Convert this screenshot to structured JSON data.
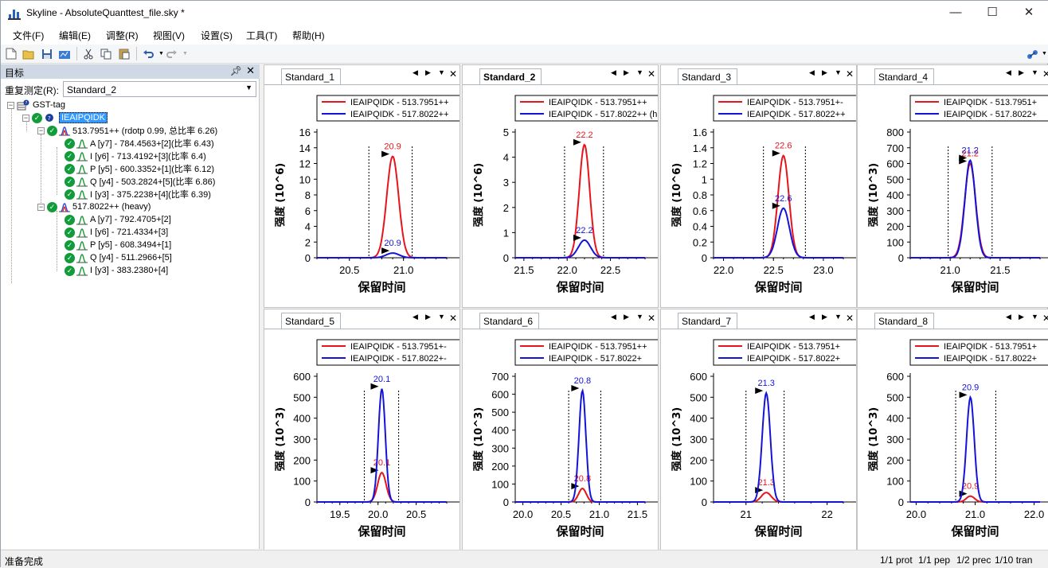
{
  "window": {
    "title": "Skyline - AbsoluteQuanttest_file.sky *",
    "controls": [
      "—",
      "☐",
      "✕"
    ]
  },
  "menu": [
    "文件(F)",
    "编辑(E)",
    "调整(R)",
    "视图(V)",
    "设置(S)",
    "工具(T)",
    "帮助(H)"
  ],
  "targets": {
    "header": "目标",
    "replicate_label": "重复测定(R):",
    "replicate_value": "Standard_2",
    "tree": {
      "protein": "GST-tag",
      "peptide": "IEAIPQIDK",
      "precursors": [
        {
          "label": "513.7951++ (rdotp 0.99, 总比率 6.26)",
          "transitions": [
            "A [y7] - 784.4563+[2](比率 6.43)",
            "I [y6] - 713.4192+[3](比率 6.4)",
            "P [y5] - 600.3352+[1](比率 6.12)",
            "Q [y4] - 503.2824+[5](比率 6.86)",
            "I [y3] - 375.2238+[4](比率 6.39)"
          ]
        },
        {
          "label": "517.8022++ (heavy)",
          "transitions": [
            "A [y7] - 792.4705+[2]",
            "I [y6] - 721.4334+[3]",
            "P [y5] - 608.3494+[1]",
            "Q [y4] - 511.2966+[5]",
            "I [y3] - 383.2380+[4]"
          ]
        }
      ]
    }
  },
  "status": {
    "left": "准备完成",
    "prot": "1/1 prot",
    "pep": "1/1 pep",
    "prec": "1/2 prec",
    "tran": "1/10 tran"
  },
  "colors": {
    "light": "#e8141c",
    "heavy": "#1313d9",
    "peak_check": "#119b3a",
    "selection": "#3399ff"
  },
  "chart_data": [
    {
      "type": "line",
      "tab": "Standard_1",
      "title": "",
      "xlabel": "保留时间",
      "ylabel": "强度 (10^6)",
      "xlim": [
        20.2,
        21.4
      ],
      "ylim": [
        0,
        16
      ],
      "xticks": [
        20.5,
        21.0
      ],
      "xtick_labels": [
        "20.5",
        "21.0"
      ],
      "yticks": [
        0,
        2,
        4,
        6,
        8,
        10,
        12,
        14,
        16
      ],
      "ytick_labels": [
        "0",
        "2",
        "4",
        "6",
        "8",
        "10",
        "12",
        "14",
        "16"
      ],
      "boundaries": [
        20.68,
        21.08
      ],
      "legend": [
        "IEAIPQIDK - 513.7951++",
        "IEAIPQIDK - 517.8022++"
      ],
      "series": [
        {
          "name": "IEAIPQIDK - 513.7951++",
          "color": "#e8141c",
          "rt": 20.9,
          "apex": 12.9,
          "width": 0.055,
          "label": "20.9"
        },
        {
          "name": "IEAIPQIDK - 517.8022++",
          "color": "#1313d9",
          "rt": 20.9,
          "apex": 0.6,
          "width": 0.06,
          "label": "20.9"
        }
      ]
    },
    {
      "type": "line",
      "tab": "Standard_2",
      "title": "",
      "xlabel": "保留时间",
      "ylabel": "强度 (10^6)",
      "xlim": [
        21.4,
        22.9
      ],
      "ylim": [
        0,
        5
      ],
      "xticks": [
        21.5,
        22.0,
        22.5
      ],
      "xtick_labels": [
        "21.5",
        "22.0",
        "22.5"
      ],
      "yticks": [
        0,
        1,
        2,
        3,
        4,
        5
      ],
      "ytick_labels": [
        "0",
        "1",
        "2",
        "3",
        "4",
        "5"
      ],
      "boundaries": [
        21.97,
        22.42
      ],
      "legend": [
        "IEAIPQIDK - 513.7951++",
        "IEAIPQIDK - 517.8022++ (h"
      ],
      "series": [
        {
          "name": "IEAIPQIDK - 513.7951++",
          "color": "#e8141c",
          "rt": 22.2,
          "apex": 4.5,
          "width": 0.06,
          "label": "22.2"
        },
        {
          "name": "IEAIPQIDK - 517.8022++ (h",
          "color": "#1313d9",
          "rt": 22.2,
          "apex": 0.7,
          "width": 0.07,
          "label": "22.2"
        }
      ]
    },
    {
      "type": "line",
      "tab": "Standard_3",
      "title": "",
      "xlabel": "保留时间",
      "ylabel": "强度 (10^6)",
      "xlim": [
        21.9,
        23.2
      ],
      "ylim": [
        0,
        1.6
      ],
      "xticks": [
        22.0,
        22.5,
        23.0
      ],
      "xtick_labels": [
        "22.0",
        "22.5",
        "23.0"
      ],
      "yticks": [
        0,
        0.2,
        0.4,
        0.6,
        0.8,
        1.0,
        1.2,
        1.4,
        1.6
      ],
      "ytick_labels": [
        "0",
        "0.2",
        "0.4",
        "0.6",
        "0.8",
        "1",
        "1.2",
        "1.4",
        "1.6"
      ],
      "boundaries": [
        22.4,
        22.82
      ],
      "legend": [
        "IEAIPQIDK - 513.7951+-",
        "IEAIPQIDK - 517.8022++"
      ],
      "series": [
        {
          "name": "IEAIPQIDK - 513.7951+-",
          "color": "#e8141c",
          "rt": 22.6,
          "apex": 1.3,
          "width": 0.055,
          "label": "22.6"
        },
        {
          "name": "IEAIPQIDK - 517.8022++",
          "color": "#1313d9",
          "rt": 22.6,
          "apex": 0.63,
          "width": 0.06,
          "label": "22.6"
        }
      ]
    },
    {
      "type": "line",
      "tab": "Standard_4",
      "title": "",
      "xlabel": "保留时间",
      "ylabel": "强度 (10^3)",
      "xlim": [
        20.6,
        21.9
      ],
      "ylim": [
        0,
        800
      ],
      "xticks": [
        21.0,
        21.5
      ],
      "xtick_labels": [
        "21.0",
        "21.5"
      ],
      "yticks": [
        0,
        100,
        200,
        300,
        400,
        500,
        600,
        700,
        800
      ],
      "ytick_labels": [
        "0",
        "100",
        "200",
        "300",
        "400",
        "500",
        "600",
        "700",
        "800"
      ],
      "boundaries": [
        20.98,
        21.42
      ],
      "legend": [
        "IEAIPQIDK - 513.7951+",
        "IEAIPQIDK - 517.8022+"
      ],
      "series": [
        {
          "name": "IEAIPQIDK - 513.7951+",
          "color": "#e8141c",
          "rt": 21.2,
          "apex": 600,
          "width": 0.055,
          "label": "21.2"
        },
        {
          "name": "IEAIPQIDK - 517.8022+",
          "color": "#1313d9",
          "rt": 21.2,
          "apex": 620,
          "width": 0.052,
          "label": "21.2"
        }
      ]
    },
    {
      "type": "line",
      "tab": "Standard_5",
      "title": "",
      "xlabel": "保留时间",
      "ylabel": "强度 (10^3)",
      "xlim": [
        19.2,
        20.9
      ],
      "ylim": [
        0,
        600
      ],
      "xticks": [
        19.5,
        20.0,
        20.5
      ],
      "xtick_labels": [
        "19.5",
        "20.0",
        "20.5"
      ],
      "yticks": [
        0,
        100,
        200,
        300,
        400,
        500,
        600
      ],
      "ytick_labels": [
        "0",
        "100",
        "200",
        "300",
        "400",
        "500",
        "600"
      ],
      "boundaries": [
        19.82,
        20.27
      ],
      "legend": [
        "IEAIPQIDK - 513.7951+-",
        "IEAIPQIDK - 517.8022+-"
      ],
      "series": [
        {
          "name": "IEAIPQIDK - 513.7951+-",
          "color": "#e8141c",
          "rt": 20.05,
          "apex": 140,
          "width": 0.055,
          "label": "20.1"
        },
        {
          "name": "IEAIPQIDK - 517.8022+-",
          "color": "#1313d9",
          "rt": 20.05,
          "apex": 540,
          "width": 0.045,
          "label": "20.1"
        }
      ]
    },
    {
      "type": "line",
      "tab": "Standard_6",
      "title": "",
      "xlabel": "保留时间",
      "ylabel": "强度 (10^3)",
      "xlim": [
        19.9,
        21.6
      ],
      "ylim": [
        0,
        700
      ],
      "xticks": [
        20.0,
        20.5,
        21.0,
        21.5
      ],
      "xtick_labels": [
        "20.0",
        "20.5",
        "21.0",
        "21.5"
      ],
      "yticks": [
        0,
        100,
        200,
        300,
        400,
        500,
        600,
        700
      ],
      "ytick_labels": [
        "0",
        "100",
        "200",
        "300",
        "400",
        "500",
        "600",
        "700"
      ],
      "boundaries": [
        20.6,
        21.02
      ],
      "legend": [
        "IEAIPQIDK - 513.7951++",
        "IEAIPQIDK - 517.8022+"
      ],
      "series": [
        {
          "name": "IEAIPQIDK - 513.7951++",
          "color": "#e8141c",
          "rt": 20.78,
          "apex": 75,
          "width": 0.05,
          "label": "20.8"
        },
        {
          "name": "IEAIPQIDK - 517.8022+",
          "color": "#1313d9",
          "rt": 20.78,
          "apex": 620,
          "width": 0.045,
          "label": "20.8"
        }
      ]
    },
    {
      "type": "line",
      "tab": "Standard_7",
      "title": "",
      "xlabel": "保留时间",
      "ylabel": "强度 (10^3)",
      "xlim": [
        20.6,
        22.2
      ],
      "ylim": [
        0,
        600
      ],
      "xticks": [
        21,
        22
      ],
      "xtick_labels": [
        "21",
        "22"
      ],
      "yticks": [
        0,
        100,
        200,
        300,
        400,
        500,
        600
      ],
      "ytick_labels": [
        "0",
        "100",
        "200",
        "300",
        "400",
        "500",
        "600"
      ],
      "boundaries": [
        21.0,
        21.47
      ],
      "legend": [
        "IEAIPQIDK - 513.7951+",
        "IEAIPQIDK - 517.8022+"
      ],
      "series": [
        {
          "name": "IEAIPQIDK - 513.7951+",
          "color": "#e8141c",
          "rt": 21.25,
          "apex": 45,
          "width": 0.06,
          "label": "21.3"
        },
        {
          "name": "IEAIPQIDK - 517.8022+",
          "color": "#1313d9",
          "rt": 21.25,
          "apex": 520,
          "width": 0.05,
          "label": "21.3"
        }
      ]
    },
    {
      "type": "line",
      "tab": "Standard_8",
      "title": "",
      "xlabel": "保留时间",
      "ylabel": "强度 (10^3)",
      "xlim": [
        19.9,
        22.1
      ],
      "ylim": [
        0,
        600
      ],
      "xticks": [
        20.0,
        21.0,
        22.0
      ],
      "xtick_labels": [
        "20.0",
        "21.0",
        "22.0"
      ],
      "yticks": [
        0,
        100,
        200,
        300,
        400,
        500,
        600
      ],
      "ytick_labels": [
        "0",
        "100",
        "200",
        "300",
        "400",
        "500",
        "600"
      ],
      "boundaries": [
        20.67,
        21.35
      ],
      "legend": [
        "IEAIPQIDK - 513.7951+",
        "IEAIPQIDK - 517.8022+"
      ],
      "series": [
        {
          "name": "IEAIPQIDK - 513.7951+",
          "color": "#e8141c",
          "rt": 20.92,
          "apex": 28,
          "width": 0.07,
          "label": "20.9"
        },
        {
          "name": "IEAIPQIDK - 517.8022+",
          "color": "#1313d9",
          "rt": 20.92,
          "apex": 500,
          "width": 0.065,
          "label": "20.9"
        }
      ]
    }
  ]
}
